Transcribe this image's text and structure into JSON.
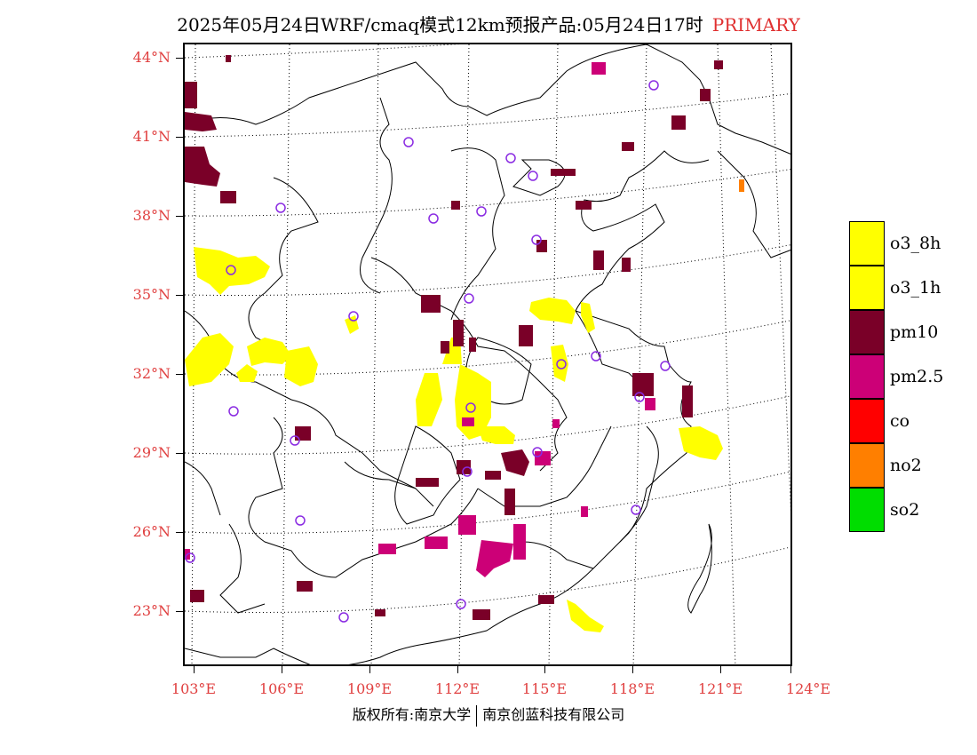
{
  "title": {
    "main": "2025年05月24日WRF/cmaq模式12km预报产品:05月24日17时",
    "mode": "PRIMARY",
    "mode_color": "#e03030"
  },
  "axes": {
    "lat_labels": [
      "44°N",
      "41°N",
      "38°N",
      "35°N",
      "32°N",
      "29°N",
      "26°N",
      "23°N"
    ],
    "lon_labels": [
      "103°E",
      "106°E",
      "109°E",
      "112°E",
      "115°E",
      "118°E",
      "121°E",
      "124°E"
    ],
    "label_color": "#e04040"
  },
  "legend": {
    "items": [
      {
        "label": "o3_8h",
        "color": "#ffff00"
      },
      {
        "label": "o3_1h",
        "color": "#ffff00"
      },
      {
        "label": "pm10",
        "color": "#7a0028"
      },
      {
        "label": "pm2.5",
        "color": "#cc0077"
      },
      {
        "label": "co",
        "color": "#ff0000"
      },
      {
        "label": "no2",
        "color": "#ff7f00"
      },
      {
        "label": "so2",
        "color": "#00dd00"
      }
    ]
  },
  "copyright": {
    "left": "版权所有:南京大学",
    "right": "南京创蓝科技有限公司"
  },
  "colors": {
    "station_marker": "#8a2be2",
    "o3": "#ffff00",
    "pm10": "#7a0028",
    "pm25": "#cc0077",
    "no2": "#ff7f00"
  }
}
